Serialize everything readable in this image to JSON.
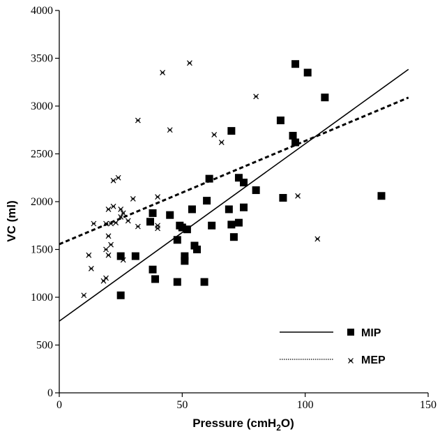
{
  "chart_data": {
    "type": "scatter",
    "xlabel": "Pressure (cmH",
    "xlabel_sub": "2",
    "xlabel_end": "O)",
    "ylabel": "VC (ml)",
    "xlim": [
      0,
      150
    ],
    "ylim": [
      0,
      4000
    ],
    "xticks": [
      0,
      50,
      100,
      150
    ],
    "yticks": [
      0,
      500,
      1000,
      1500,
      2000,
      2500,
      3000,
      3500,
      4000
    ],
    "grid": false,
    "legend_position": "bottom-right",
    "series": [
      {
        "name": "MIP",
        "marker": "square",
        "color": "#000000",
        "points": [
          [
            25,
            1020
          ],
          [
            25,
            1430
          ],
          [
            31,
            1430
          ],
          [
            37,
            1790
          ],
          [
            38,
            1880
          ],
          [
            38,
            1290
          ],
          [
            39,
            1190
          ],
          [
            45,
            1860
          ],
          [
            48,
            1160
          ],
          [
            48,
            1600
          ],
          [
            49,
            1750
          ],
          [
            50,
            1730
          ],
          [
            51,
            1430
          ],
          [
            51,
            1380
          ],
          [
            52,
            1710
          ],
          [
            54,
            1920
          ],
          [
            55,
            1540
          ],
          [
            56,
            1500
          ],
          [
            59,
            1160
          ],
          [
            60,
            2010
          ],
          [
            61,
            2240
          ],
          [
            62,
            1750
          ],
          [
            69,
            1920
          ],
          [
            70,
            1760
          ],
          [
            70,
            2740
          ],
          [
            71,
            1630
          ],
          [
            73,
            2250
          ],
          [
            73,
            1780
          ],
          [
            75,
            2200
          ],
          [
            75,
            1940
          ],
          [
            80,
            2120
          ],
          [
            90,
            2850
          ],
          [
            91,
            2040
          ],
          [
            95,
            2690
          ],
          [
            96,
            2620
          ],
          [
            96,
            3440
          ],
          [
            101,
            3350
          ],
          [
            108,
            3090
          ],
          [
            131,
            2060
          ]
        ]
      },
      {
        "name": "MEP",
        "marker": "asterisk",
        "color": "#000000",
        "points": [
          [
            10,
            1020
          ],
          [
            12,
            1440
          ],
          [
            13,
            1300
          ],
          [
            14,
            1770
          ],
          [
            18,
            1170
          ],
          [
            19,
            1200
          ],
          [
            19,
            1500
          ],
          [
            19,
            1770
          ],
          [
            20,
            1440
          ],
          [
            20,
            1640
          ],
          [
            20,
            1920
          ],
          [
            21,
            1550
          ],
          [
            21,
            1770
          ],
          [
            22,
            1950
          ],
          [
            22,
            2220
          ],
          [
            23,
            1780
          ],
          [
            24,
            2250
          ],
          [
            25,
            1920
          ],
          [
            25,
            1840
          ],
          [
            26,
            1880
          ],
          [
            26,
            1390
          ],
          [
            28,
            1800
          ],
          [
            30,
            2030
          ],
          [
            32,
            1740
          ],
          [
            32,
            2850
          ],
          [
            40,
            2050
          ],
          [
            40,
            1720
          ],
          [
            40,
            1750
          ],
          [
            42,
            3350
          ],
          [
            45,
            2750
          ],
          [
            53,
            3450
          ],
          [
            63,
            2700
          ],
          [
            66,
            2620
          ],
          [
            80,
            3100
          ],
          [
            80,
            2130
          ],
          [
            97,
            2060
          ],
          [
            105,
            1610
          ]
        ]
      }
    ],
    "regression_lines": [
      {
        "name": "MIP",
        "style": "solid",
        "intercept": 750,
        "slope": 18.55,
        "x_range": [
          0,
          142
        ]
      },
      {
        "name": "MEP",
        "style": "dotted",
        "intercept": 1555,
        "slope": 10.8,
        "x_range": [
          0,
          142
        ]
      }
    ],
    "legend": [
      {
        "label": "MIP",
        "line_style": "solid",
        "marker": "square"
      },
      {
        "label": "MEP",
        "line_style": "dotted",
        "marker": "asterisk"
      }
    ]
  }
}
